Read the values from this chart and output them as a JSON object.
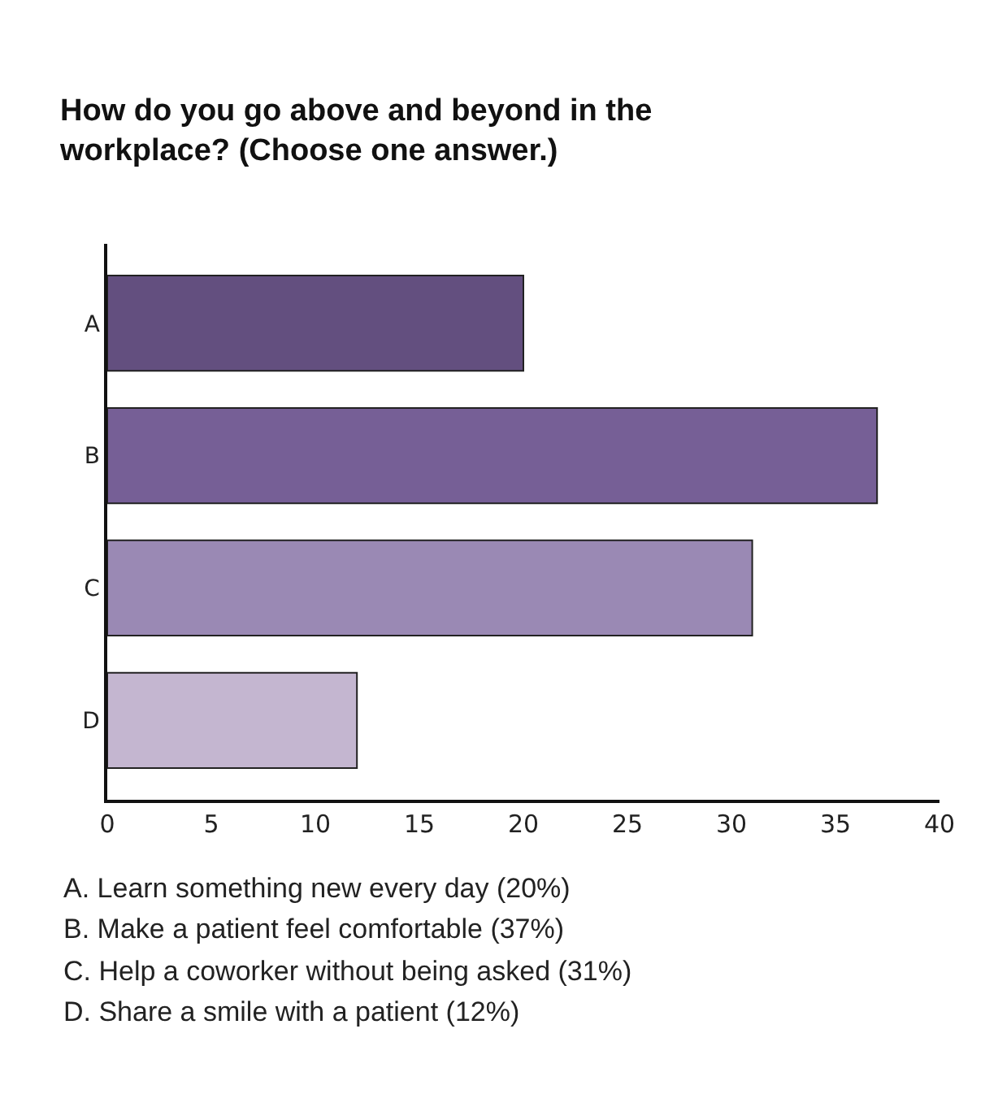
{
  "chart_data": {
    "type": "bar",
    "orientation": "horizontal",
    "title": "How do you go above and beyond in the workplace? (Choose one answer.)",
    "categories": [
      "A",
      "B",
      "C",
      "D"
    ],
    "values": [
      20,
      37,
      31,
      12
    ],
    "colors": [
      "#634f7f",
      "#765f96",
      "#9a89b4",
      "#c4b6d0"
    ],
    "xlim": [
      0,
      40
    ],
    "xticks": [
      0,
      5,
      10,
      15,
      20,
      25,
      30,
      35,
      40
    ],
    "grid": false,
    "annotations": [
      "A. Learn something new every day (20%)",
      "B. Make a patient feel comfortable (37%)",
      "C. Help a coworker without being asked (31%)",
      "D. Share a smile with a patient (12%)"
    ]
  }
}
